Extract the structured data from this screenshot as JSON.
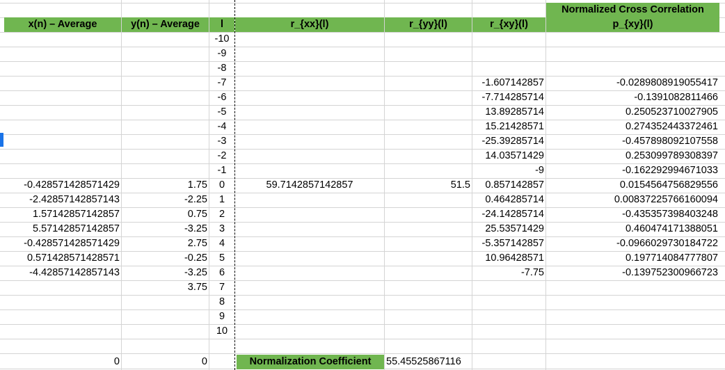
{
  "headers": {
    "x_avg": "x(n) – Average",
    "y_avg": "y(n) – Average",
    "lag": "l",
    "rxx": "r_{xx}(l)",
    "ryy": "r_{yy}(l)",
    "rxy": "r_{xy}(l)",
    "ncc_title": "Normalized Cross Correlation",
    "pxy": "p_{xy}(l)"
  },
  "rows": [
    {
      "l": "-10",
      "x": "",
      "y": "",
      "rxx": "",
      "ryy": "",
      "rxy": "",
      "pxy": ""
    },
    {
      "l": "-9",
      "x": "",
      "y": "",
      "rxx": "",
      "ryy": "",
      "rxy": "",
      "pxy": ""
    },
    {
      "l": "-8",
      "x": "",
      "y": "",
      "rxx": "",
      "ryy": "",
      "rxy": "",
      "pxy": ""
    },
    {
      "l": "-7",
      "x": "",
      "y": "",
      "rxx": "",
      "ryy": "",
      "rxy": "-1.607142857",
      "pxy": "-0.0289808919055417"
    },
    {
      "l": "-6",
      "x": "",
      "y": "",
      "rxx": "",
      "ryy": "",
      "rxy": "-7.714285714",
      "pxy": "-0.1391082811466"
    },
    {
      "l": "-5",
      "x": "",
      "y": "",
      "rxx": "",
      "ryy": "",
      "rxy": "13.89285714",
      "pxy": "0.250523710027905"
    },
    {
      "l": "-4",
      "x": "",
      "y": "",
      "rxx": "",
      "ryy": "",
      "rxy": "15.21428571",
      "pxy": "0.274352443372461"
    },
    {
      "l": "-3",
      "x": "",
      "y": "",
      "rxx": "",
      "ryy": "",
      "rxy": "-25.39285714",
      "pxy": "-0.457898092107558"
    },
    {
      "l": "-2",
      "x": "",
      "y": "",
      "rxx": "",
      "ryy": "",
      "rxy": "14.03571429",
      "pxy": "0.253099789308397"
    },
    {
      "l": "-1",
      "x": "",
      "y": "",
      "rxx": "",
      "ryy": "",
      "rxy": "-9",
      "pxy": "-0.162292994671033"
    },
    {
      "l": "0",
      "x": "-0.428571428571429",
      "y": "1.75",
      "rxx": "59.7142857142857",
      "ryy": "51.5",
      "rxy": "0.857142857",
      "pxy": "0.0154564756829556"
    },
    {
      "l": "1",
      "x": "-2.42857142857143",
      "y": "-2.25",
      "rxx": "",
      "ryy": "",
      "rxy": "0.464285714",
      "pxy": "0.00837225766160094"
    },
    {
      "l": "2",
      "x": "1.57142857142857",
      "y": "0.75",
      "rxx": "",
      "ryy": "",
      "rxy": "-24.14285714",
      "pxy": "-0.435357398403248"
    },
    {
      "l": "3",
      "x": "5.57142857142857",
      "y": "-3.25",
      "rxx": "",
      "ryy": "",
      "rxy": "25.53571429",
      "pxy": "0.460474171388051"
    },
    {
      "l": "4",
      "x": "-0.428571428571429",
      "y": "2.75",
      "rxx": "",
      "ryy": "",
      "rxy": "-5.357142857",
      "pxy": "-0.0966029730184722"
    },
    {
      "l": "5",
      "x": "0.571428571428571",
      "y": "-0.25",
      "rxx": "",
      "ryy": "",
      "rxy": "10.96428571",
      "pxy": "0.197714084777807"
    },
    {
      "l": "6",
      "x": "-4.42857142857143",
      "y": "-3.25",
      "rxx": "",
      "ryy": "",
      "rxy": "-7.75",
      "pxy": "-0.139752300966723"
    },
    {
      "l": "7",
      "x": "",
      "y": "3.75",
      "rxx": "",
      "ryy": "",
      "rxy": "",
      "pxy": ""
    },
    {
      "l": "8",
      "x": "",
      "y": "",
      "rxx": "",
      "ryy": "",
      "rxy": "",
      "pxy": ""
    },
    {
      "l": "9",
      "x": "",
      "y": "",
      "rxx": "",
      "ryy": "",
      "rxy": "",
      "pxy": ""
    },
    {
      "l": "10",
      "x": "",
      "y": "",
      "rxx": "",
      "ryy": "",
      "rxy": "",
      "pxy": ""
    }
  ],
  "footer": {
    "x_sum": "0",
    "y_sum": "0",
    "norm_label": "Normalization Coefficient",
    "norm_value": "55.45525867116"
  },
  "colors": {
    "header_green": "#70b650",
    "grid": "#d4d4d4",
    "selection": "#1a73e8"
  }
}
